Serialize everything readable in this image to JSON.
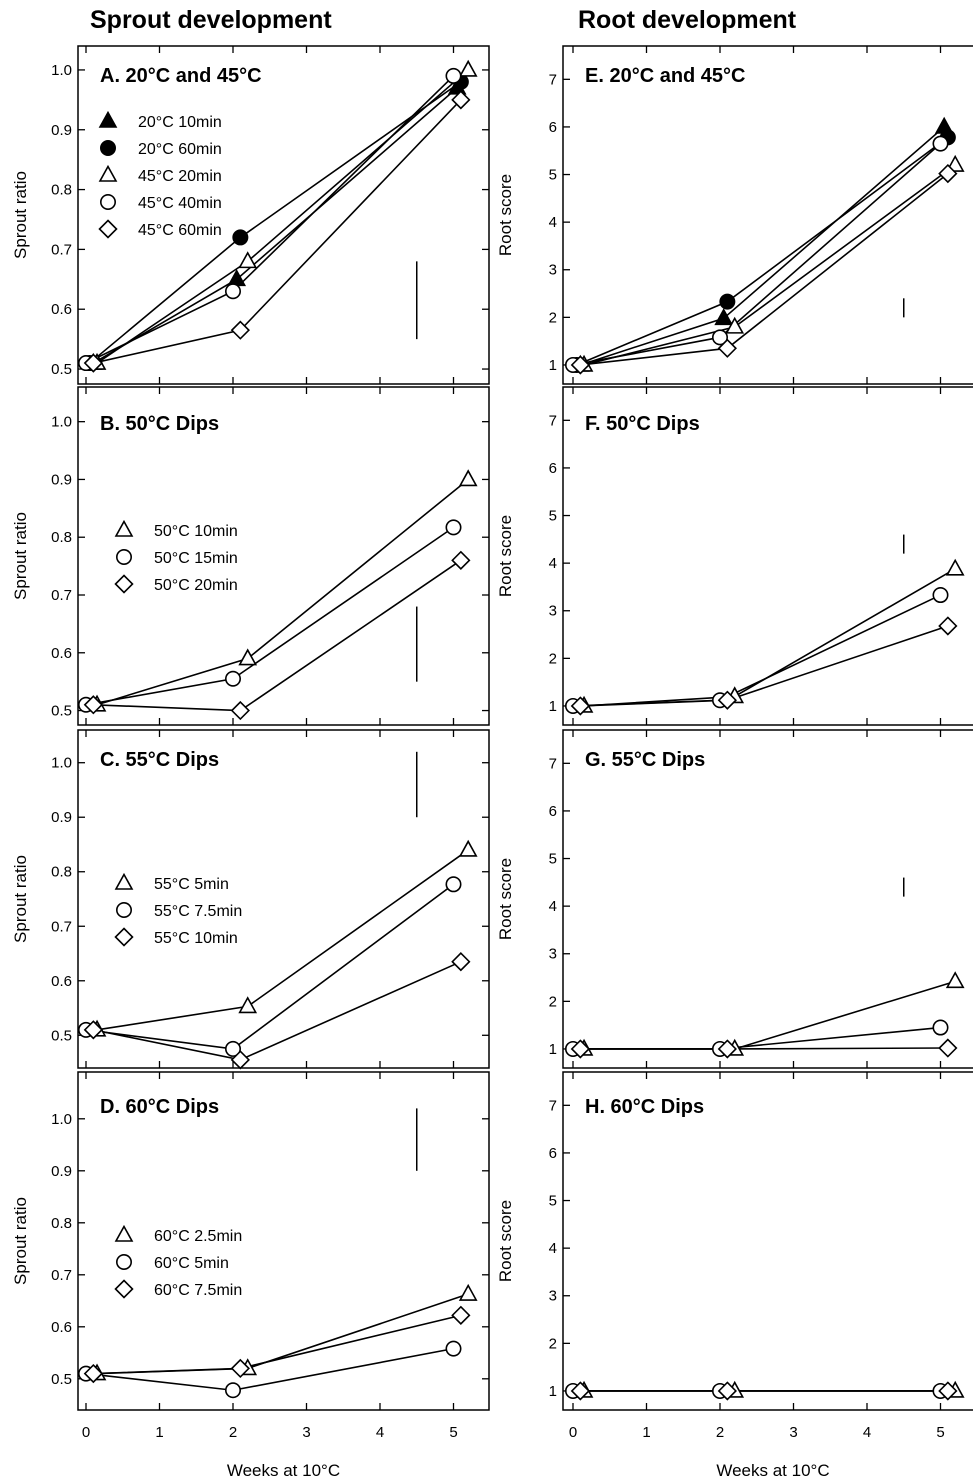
{
  "column_titles": {
    "left": "Sprout development",
    "right": "Root development"
  },
  "chart_data": [
    {
      "id": "A",
      "type": "line",
      "title": "A.  20°C and 45°C",
      "xlabel": "",
      "ylabel": "Sprout ratio",
      "xlim": [
        0,
        5.5
      ],
      "ylim": [
        0.475,
        1.04
      ],
      "yticks": [
        0.5,
        0.6,
        0.7,
        0.8,
        0.9,
        1.0
      ],
      "ytick_labels": [
        "0.5",
        "0.6",
        "0.7",
        "0.8",
        "0.9",
        "1.0"
      ],
      "legend_position": "upper-left",
      "error_bar": {
        "x": 4.5,
        "y1": 0.55,
        "y2": 0.68
      },
      "series": [
        {
          "name": "20°C 10min",
          "marker": "triangle",
          "filled": true,
          "x": [
            0.1,
            2.05,
            5.05
          ],
          "y": [
            0.51,
            0.65,
            0.97
          ]
        },
        {
          "name": "20°C 60min",
          "marker": "circle",
          "filled": true,
          "x": [
            0.05,
            2.1,
            5.1
          ],
          "y": [
            0.51,
            0.72,
            0.98
          ]
        },
        {
          "name": "45°C 20min",
          "marker": "triangle",
          "filled": false,
          "x": [
            0.15,
            2.2,
            5.2
          ],
          "y": [
            0.51,
            0.68,
            1.0
          ]
        },
        {
          "name": "45°C 40min",
          "marker": "circle",
          "filled": false,
          "x": [
            0.0,
            2.0,
            5.0
          ],
          "y": [
            0.51,
            0.63,
            0.99
          ]
        },
        {
          "name": "45°C 60min",
          "marker": "diamond",
          "filled": false,
          "x": [
            0.1,
            2.1,
            5.1
          ],
          "y": [
            0.51,
            0.565,
            0.95
          ]
        }
      ]
    },
    {
      "id": "B",
      "type": "line",
      "title": "B.  50°C Dips",
      "xlabel": "",
      "ylabel": "Sprout ratio",
      "xlim": [
        0,
        5.5
      ],
      "ylim": [
        0.475,
        1.06
      ],
      "yticks": [
        0.5,
        0.6,
        0.7,
        0.8,
        0.9,
        1.0
      ],
      "ytick_labels": [
        "0.5",
        "0.6",
        "0.7",
        "0.8",
        "0.9",
        "1.0"
      ],
      "legend_position": "middle-left",
      "error_bar": {
        "x": 4.5,
        "y1": 0.55,
        "y2": 0.68
      },
      "series": [
        {
          "name": "50°C 10min",
          "marker": "triangle",
          "filled": false,
          "x": [
            0.15,
            2.2,
            5.2
          ],
          "y": [
            0.51,
            0.59,
            0.9
          ]
        },
        {
          "name": "50°C 15min",
          "marker": "circle",
          "filled": false,
          "x": [
            0.0,
            2.0,
            5.0
          ],
          "y": [
            0.51,
            0.555,
            0.817
          ]
        },
        {
          "name": "50°C 20min",
          "marker": "diamond",
          "filled": false,
          "x": [
            0.1,
            2.1,
            5.1
          ],
          "y": [
            0.51,
            0.5,
            0.76
          ]
        }
      ]
    },
    {
      "id": "C",
      "type": "line",
      "title": "C.  55°C Dips",
      "xlabel": "",
      "ylabel": "Sprout ratio",
      "xlim": [
        0,
        5.5
      ],
      "ylim": [
        0.44,
        1.06
      ],
      "yticks": [
        0.5,
        0.6,
        0.7,
        0.8,
        0.9,
        1.0
      ],
      "ytick_labels": [
        "0.5",
        "0.6",
        "0.7",
        "0.8",
        "0.9",
        "1.0"
      ],
      "legend_position": "middle-left",
      "error_bar": {
        "x": 4.5,
        "y1": 0.9,
        "y2": 1.02
      },
      "series": [
        {
          "name": "55°C 5min",
          "marker": "triangle",
          "filled": false,
          "x": [
            0.15,
            2.2,
            5.2
          ],
          "y": [
            0.51,
            0.553,
            0.84
          ]
        },
        {
          "name": "55°C 7.5min",
          "marker": "circle",
          "filled": false,
          "x": [
            0.0,
            2.0,
            5.0
          ],
          "y": [
            0.51,
            0.475,
            0.777
          ]
        },
        {
          "name": "55°C 10min",
          "marker": "diamond",
          "filled": false,
          "x": [
            0.1,
            2.1,
            5.1
          ],
          "y": [
            0.51,
            0.455,
            0.635
          ]
        }
      ]
    },
    {
      "id": "D",
      "type": "line",
      "title": "D.  60°C Dips",
      "xlabel": "Weeks at 10°C",
      "ylabel": "Sprout ratio",
      "xlim": [
        0,
        5.5
      ],
      "ylim": [
        0.44,
        1.09
      ],
      "yticks": [
        0.5,
        0.6,
        0.7,
        0.8,
        0.9,
        1.0
      ],
      "ytick_labels": [
        "0.5",
        "0.6",
        "0.7",
        "0.8",
        "0.9",
        "1.0"
      ],
      "xticks": [
        0,
        1,
        2,
        3,
        4,
        5
      ],
      "xtick_labels": [
        "0",
        "1",
        "2",
        "3",
        "4",
        "5"
      ],
      "legend_position": "middle-left",
      "error_bar": {
        "x": 4.5,
        "y1": 0.9,
        "y2": 1.02
      },
      "series": [
        {
          "name": "60°C 2.5min",
          "marker": "triangle",
          "filled": false,
          "x": [
            0.15,
            2.2,
            5.2
          ],
          "y": [
            0.51,
            0.52,
            0.663
          ]
        },
        {
          "name": "60°C 5min",
          "marker": "circle",
          "filled": false,
          "x": [
            0.0,
            2.0,
            5.0
          ],
          "y": [
            0.51,
            0.478,
            0.558
          ]
        },
        {
          "name": "60°C 7.5min",
          "marker": "diamond",
          "filled": false,
          "x": [
            0.1,
            2.1,
            5.1
          ],
          "y": [
            0.51,
            0.52,
            0.622
          ]
        }
      ]
    },
    {
      "id": "E",
      "type": "line",
      "title": "E.  20°C and 45°C",
      "xlabel": "",
      "ylabel": "Root score",
      "xlim": [
        0,
        5.5
      ],
      "ylim": [
        0.6,
        7.7
      ],
      "yticks": [
        1,
        2,
        3,
        4,
        5,
        6,
        7
      ],
      "ytick_labels": [
        "1",
        "2",
        "3",
        "4",
        "5",
        "6",
        "7"
      ],
      "error_bar": {
        "x": 4.5,
        "y1": 2.0,
        "y2": 2.4
      },
      "series": [
        {
          "marker": "triangle",
          "filled": true,
          "x": [
            0.1,
            2.05,
            5.05
          ],
          "y": [
            1.0,
            1.98,
            6.0
          ]
        },
        {
          "marker": "circle",
          "filled": true,
          "x": [
            0.05,
            2.1,
            5.1
          ],
          "y": [
            1.0,
            2.33,
            5.78
          ]
        },
        {
          "marker": "triangle",
          "filled": false,
          "x": [
            0.15,
            2.2,
            5.2
          ],
          "y": [
            1.0,
            1.8,
            5.2
          ]
        },
        {
          "marker": "circle",
          "filled": false,
          "x": [
            0.0,
            2.0,
            5.0
          ],
          "y": [
            1.0,
            1.58,
            5.65
          ]
        },
        {
          "marker": "diamond",
          "filled": false,
          "x": [
            0.1,
            2.1,
            5.1
          ],
          "y": [
            1.0,
            1.35,
            5.02
          ]
        }
      ]
    },
    {
      "id": "F",
      "type": "line",
      "title": "F.  50°C Dips",
      "xlabel": "",
      "ylabel": "Root score",
      "xlim": [
        0,
        5.5
      ],
      "ylim": [
        0.6,
        7.7
      ],
      "yticks": [
        1,
        2,
        3,
        4,
        5,
        6,
        7
      ],
      "ytick_labels": [
        "1",
        "2",
        "3",
        "4",
        "5",
        "6",
        "7"
      ],
      "error_bar": {
        "x": 4.5,
        "y1": 4.2,
        "y2": 4.6
      },
      "series": [
        {
          "marker": "triangle",
          "filled": false,
          "x": [
            0.15,
            2.2,
            5.2
          ],
          "y": [
            1.0,
            1.2,
            3.88
          ]
        },
        {
          "marker": "circle",
          "filled": false,
          "x": [
            0.0,
            2.0,
            5.0
          ],
          "y": [
            1.0,
            1.12,
            3.33
          ]
        },
        {
          "marker": "diamond",
          "filled": false,
          "x": [
            0.1,
            2.1,
            5.1
          ],
          "y": [
            1.0,
            1.12,
            2.68
          ]
        }
      ]
    },
    {
      "id": "G",
      "type": "line",
      "title": "G.  55°C Dips",
      "xlabel": "",
      "ylabel": "Root score",
      "xlim": [
        0,
        5.5
      ],
      "ylim": [
        0.6,
        7.7
      ],
      "yticks": [
        1,
        2,
        3,
        4,
        5,
        6,
        7
      ],
      "ytick_labels": [
        "1",
        "2",
        "3",
        "4",
        "5",
        "6",
        "7"
      ],
      "error_bar": {
        "x": 4.5,
        "y1": 4.2,
        "y2": 4.6
      },
      "series": [
        {
          "marker": "triangle",
          "filled": false,
          "x": [
            0.15,
            2.2,
            5.2
          ],
          "y": [
            1.0,
            1.0,
            2.42
          ]
        },
        {
          "marker": "circle",
          "filled": false,
          "x": [
            0.0,
            2.0,
            5.0
          ],
          "y": [
            1.0,
            1.0,
            1.45
          ]
        },
        {
          "marker": "diamond",
          "filled": false,
          "x": [
            0.1,
            2.1,
            5.1
          ],
          "y": [
            1.0,
            1.0,
            1.02
          ]
        }
      ]
    },
    {
      "id": "H",
      "type": "line",
      "title": "H.  60°C Dips",
      "xlabel": "Weeks at 10°C",
      "ylabel": "Root score",
      "xlim": [
        0,
        5.5
      ],
      "ylim": [
        0.6,
        7.7
      ],
      "yticks": [
        1,
        2,
        3,
        4,
        5,
        6,
        7
      ],
      "ytick_labels": [
        "1",
        "2",
        "3",
        "4",
        "5",
        "6",
        "7"
      ],
      "xticks": [
        0,
        1,
        2,
        3,
        4,
        5
      ],
      "xtick_labels": [
        "0",
        "1",
        "2",
        "3",
        "4",
        "5"
      ],
      "series": [
        {
          "marker": "triangle",
          "filled": false,
          "x": [
            0.15,
            2.2,
            5.2
          ],
          "y": [
            1.0,
            1.0,
            1.0
          ]
        },
        {
          "marker": "circle",
          "filled": false,
          "x": [
            0.0,
            2.0,
            5.0
          ],
          "y": [
            1.0,
            1.0,
            1.0
          ]
        },
        {
          "marker": "diamond",
          "filled": false,
          "x": [
            0.1,
            2.1,
            5.1
          ],
          "y": [
            1.0,
            1.0,
            1.0
          ]
        }
      ]
    }
  ]
}
